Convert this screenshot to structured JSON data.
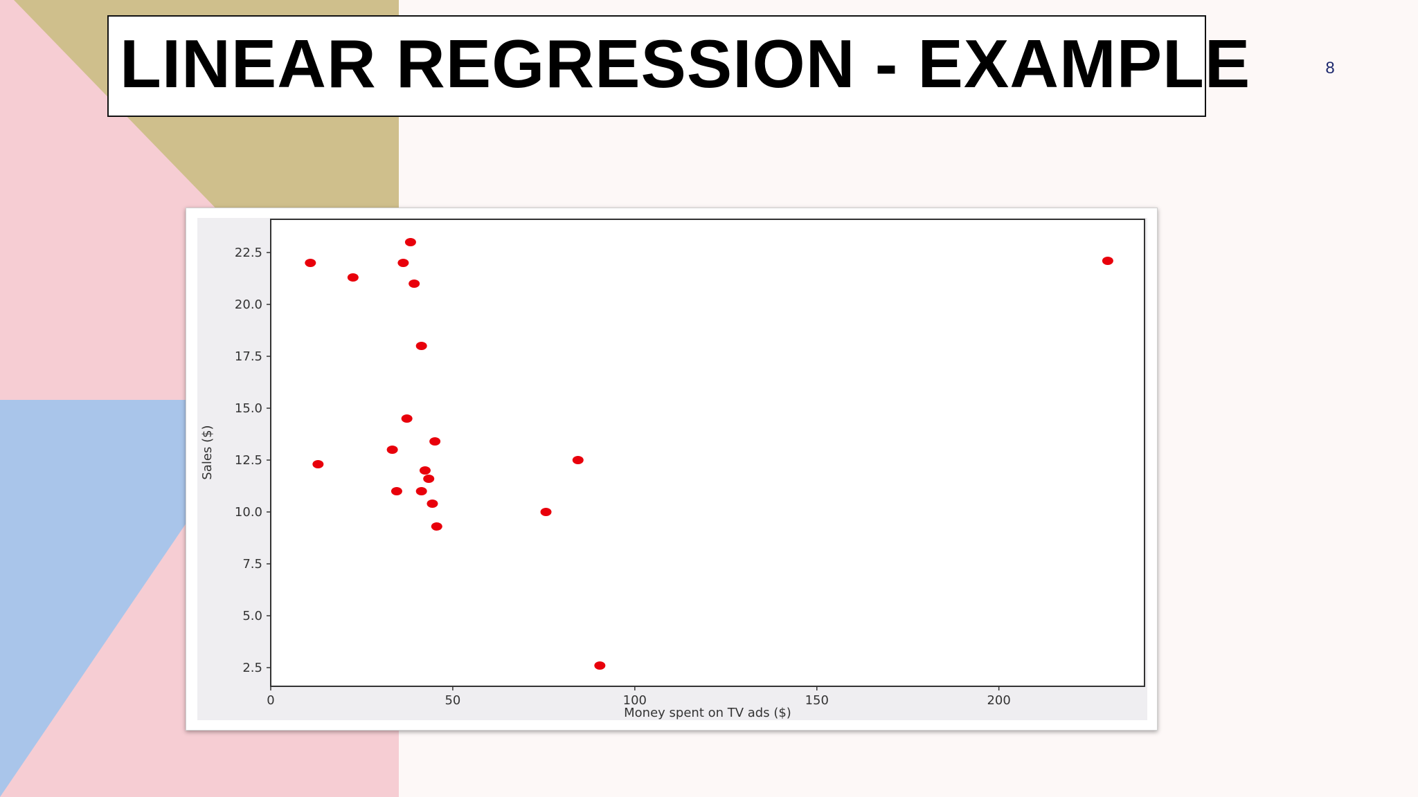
{
  "slide": {
    "title": "LINEAR REGRESSION - EXAMPLE",
    "page_number": "8",
    "colors": {
      "pink": "#f6cdd3",
      "tan": "#cfbf8c",
      "blue": "#a9c5ea",
      "background": "#fdf8f7",
      "title_text": "#000000",
      "page_number": "#1f2a6e"
    }
  },
  "chart_data": {
    "type": "scatter",
    "xlabel": "Money spent on TV ads ($)",
    "ylabel": "Sales ($)",
    "xlim": [
      0,
      240
    ],
    "ylim": [
      1.6,
      24.1
    ],
    "x_ticks": [
      0,
      50,
      100,
      150,
      200
    ],
    "x_tick_labels": [
      "0",
      "50",
      "100",
      "150",
      "200"
    ],
    "y_ticks": [
      2.5,
      5.0,
      7.5,
      10.0,
      12.5,
      15.0,
      17.5,
      20.0,
      22.5
    ],
    "y_tick_labels": [
      "2.5",
      "5.0",
      "7.5",
      "10.0",
      "12.5",
      "15.0",
      "17.5",
      "20.0",
      "22.5"
    ],
    "grid": false,
    "marker_color": "#e8000b",
    "points": [
      {
        "x": 10.9,
        "y": 22.0
      },
      {
        "x": 13.0,
        "y": 12.3
      },
      {
        "x": 22.6,
        "y": 21.3
      },
      {
        "x": 33.4,
        "y": 13.0
      },
      {
        "x": 34.6,
        "y": 11.0
      },
      {
        "x": 36.4,
        "y": 22.0
      },
      {
        "x": 37.4,
        "y": 14.5
      },
      {
        "x": 38.4,
        "y": 23.0
      },
      {
        "x": 39.4,
        "y": 21.0
      },
      {
        "x": 41.4,
        "y": 18.0
      },
      {
        "x": 41.4,
        "y": 11.0
      },
      {
        "x": 42.4,
        "y": 12.0
      },
      {
        "x": 43.4,
        "y": 11.6
      },
      {
        "x": 44.4,
        "y": 10.4
      },
      {
        "x": 45.1,
        "y": 13.4
      },
      {
        "x": 45.6,
        "y": 9.3
      },
      {
        "x": 75.6,
        "y": 10.0
      },
      {
        "x": 84.4,
        "y": 12.5
      },
      {
        "x": 90.4,
        "y": 2.6
      },
      {
        "x": 229.9,
        "y": 22.1
      }
    ]
  }
}
